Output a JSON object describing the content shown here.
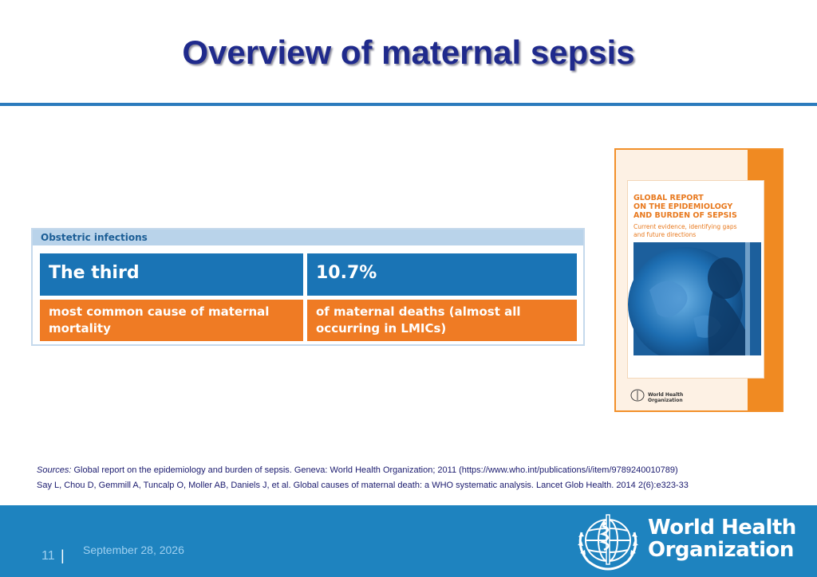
{
  "slide": {
    "title": "Overview of maternal sepsis"
  },
  "infobox": {
    "header": "Obstetric infections",
    "stat1": {
      "headline": "The third",
      "description_line1": "most common cause of maternal",
      "description_line2": "mortality"
    },
    "stat2": {
      "headline": "10.7%",
      "description_line1": "of maternal deaths (almost all",
      "description_line2": "occurring in LMICs)"
    }
  },
  "report_cover": {
    "title_line1": "GLOBAL REPORT",
    "title_line2": "ON THE EPIDEMIOLOGY",
    "title_line3": "AND BURDEN OF SEPSIS",
    "subtitle_line1": "Current evidence, identifying gaps",
    "subtitle_line2": "and future directions",
    "logo_text_line1": "World Health",
    "logo_text_line2": "Organization"
  },
  "sources": {
    "label": "Sources:",
    "text": " Global report on the epidemiology and burden of sepsis. Geneva: World Health Organization; 2011 (https://www.who.int/publications/i/item/9789240010789)",
    "reference2": "Say L, Chou D, Gemmill A, Tuncalp O, Moller AB, Daniels J, et al. Global causes of maternal death: a WHO systematic analysis. Lancet Glob Health. 2014 2(6):e323-33"
  },
  "footer": {
    "page_number": "11",
    "separator": "|",
    "date": "September 28, 2026",
    "org_line1": "World Health",
    "org_line2": "Organization",
    "background_color": "#1e83bf"
  },
  "colors": {
    "title": "#1f2a8c",
    "accent_blue": "#1a74b5",
    "accent_orange": "#ef7b24"
  }
}
